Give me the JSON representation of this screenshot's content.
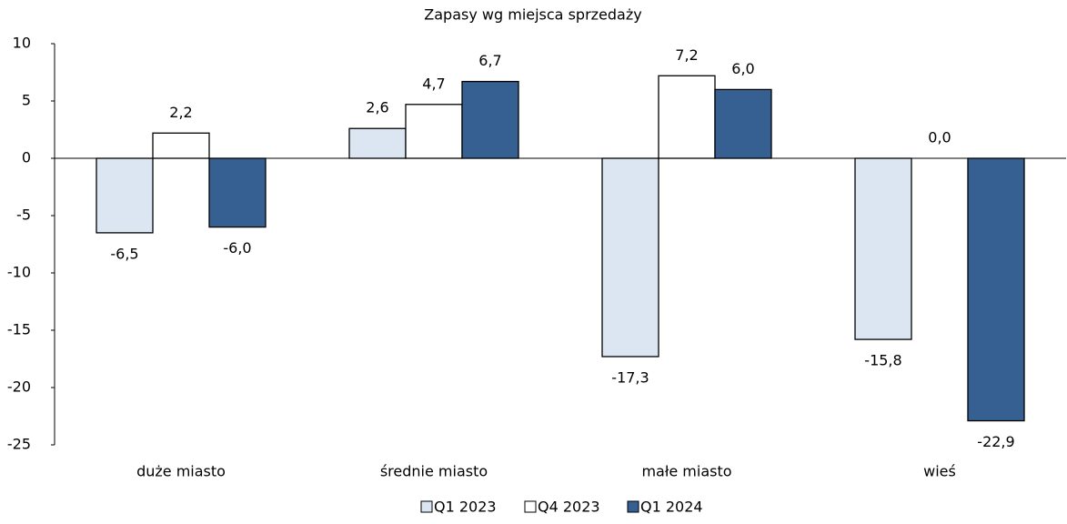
{
  "chart_data": {
    "type": "bar",
    "title": "Zapasy wg miejsca sprzedaży",
    "categories": [
      "duże miasto",
      "średnie miasto",
      "małe miasto",
      "wieś"
    ],
    "series": [
      {
        "name": "Q1 2023",
        "color": "#dce6f2",
        "values": [
          -6.5,
          2.6,
          -17.3,
          -15.8
        ],
        "value_labels": [
          "-6,5",
          "2,6",
          "-17,3",
          "-15,8"
        ]
      },
      {
        "name": "Q4 2023",
        "color": "#ffffff",
        "values": [
          2.2,
          4.7,
          7.2,
          0.0
        ],
        "value_labels": [
          "2,2",
          "4,7",
          "7,2",
          "0,0"
        ]
      },
      {
        "name": "Q1 2024",
        "color": "#366092",
        "values": [
          -6.0,
          6.7,
          6.0,
          -22.9
        ],
        "value_labels": [
          "-6,0",
          "6,7",
          "6,0",
          "-22,9"
        ]
      }
    ],
    "ylim": [
      -25,
      10
    ],
    "yticks": [
      10,
      5,
      0,
      -5,
      -10,
      -15,
      -20,
      -25
    ],
    "legend": "bottom"
  }
}
